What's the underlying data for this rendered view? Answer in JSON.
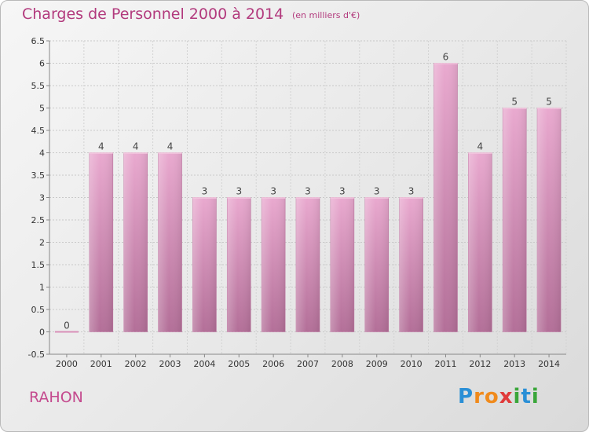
{
  "header": {
    "title": "Charges de Personnel 2000 à 2014",
    "subtitle": "(en milliers d'€)"
  },
  "location": "RAHON",
  "brand": {
    "letters": [
      "P",
      "r",
      "o",
      "x",
      "i",
      "t",
      "i"
    ],
    "colors": [
      "#2a8fd6",
      "#f08a1c",
      "#f08a1c",
      "#e03a3a",
      "#3aa63a",
      "#2a8fd6",
      "#3aa63a"
    ]
  },
  "chart_data": {
    "type": "bar",
    "categories": [
      "2000",
      "2001",
      "2002",
      "2003",
      "2004",
      "2005",
      "2006",
      "2007",
      "2008",
      "2009",
      "2010",
      "2011",
      "2012",
      "2013",
      "2014"
    ],
    "values": [
      0,
      4,
      4,
      4,
      3,
      3,
      3,
      3,
      3,
      3,
      3,
      6,
      4,
      5,
      5
    ],
    "data_labels": [
      "0",
      "4",
      "4",
      "4",
      "3",
      "3",
      "3",
      "3",
      "3",
      "3",
      "3",
      "6",
      "4",
      "5",
      "5"
    ],
    "ylim": [
      -0.5,
      6.5
    ],
    "yticks": [
      "-0.5",
      "0",
      "0.5",
      "1",
      "1.5",
      "2",
      "2.5",
      "3",
      "3.5",
      "4",
      "4.5",
      "5",
      "5.5",
      "6",
      "6.5"
    ],
    "ytick_values": [
      -0.5,
      0,
      0.5,
      1,
      1.5,
      2,
      2.5,
      3,
      3.5,
      4,
      4.5,
      5,
      5.5,
      6,
      6.5
    ],
    "grid": true,
    "bar_color": "#d98fb8"
  }
}
